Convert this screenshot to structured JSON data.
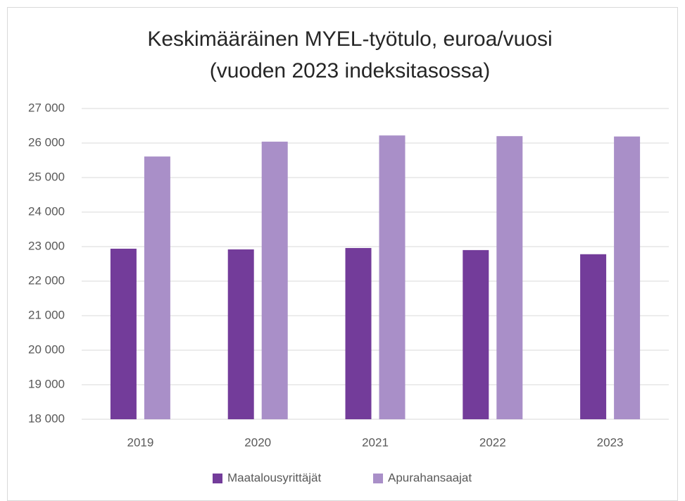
{
  "chart_data": {
    "type": "bar",
    "title": [
      "Keskimääräinen MYEL-työtulo, euroa/vuosi",
      "(vuoden 2023 indeksitasossa)"
    ],
    "categories": [
      "2019",
      "2020",
      "2021",
      "2022",
      "2023"
    ],
    "series": [
      {
        "name": "Maatalousyrittäjät",
        "color": "#733c9a",
        "values": [
          22940,
          22920,
          22960,
          22900,
          22780
        ]
      },
      {
        "name": "Apurahansaajat",
        "color": "#a98fc8",
        "values": [
          25610,
          26040,
          26220,
          26200,
          26190
        ]
      }
    ],
    "ylim": [
      18000,
      27000
    ],
    "yticks": [
      {
        "value": 18000,
        "label": "18 000"
      },
      {
        "value": 19000,
        "label": "19 000"
      },
      {
        "value": 20000,
        "label": "20 000"
      },
      {
        "value": 21000,
        "label": "21 000"
      },
      {
        "value": 22000,
        "label": "22 000"
      },
      {
        "value": 23000,
        "label": "23 000"
      },
      {
        "value": 24000,
        "label": "24 000"
      },
      {
        "value": 25000,
        "label": "25 000"
      },
      {
        "value": 26000,
        "label": "26 000"
      },
      {
        "value": 27000,
        "label": "27 000"
      }
    ],
    "grid": true,
    "legend": "bottom"
  }
}
